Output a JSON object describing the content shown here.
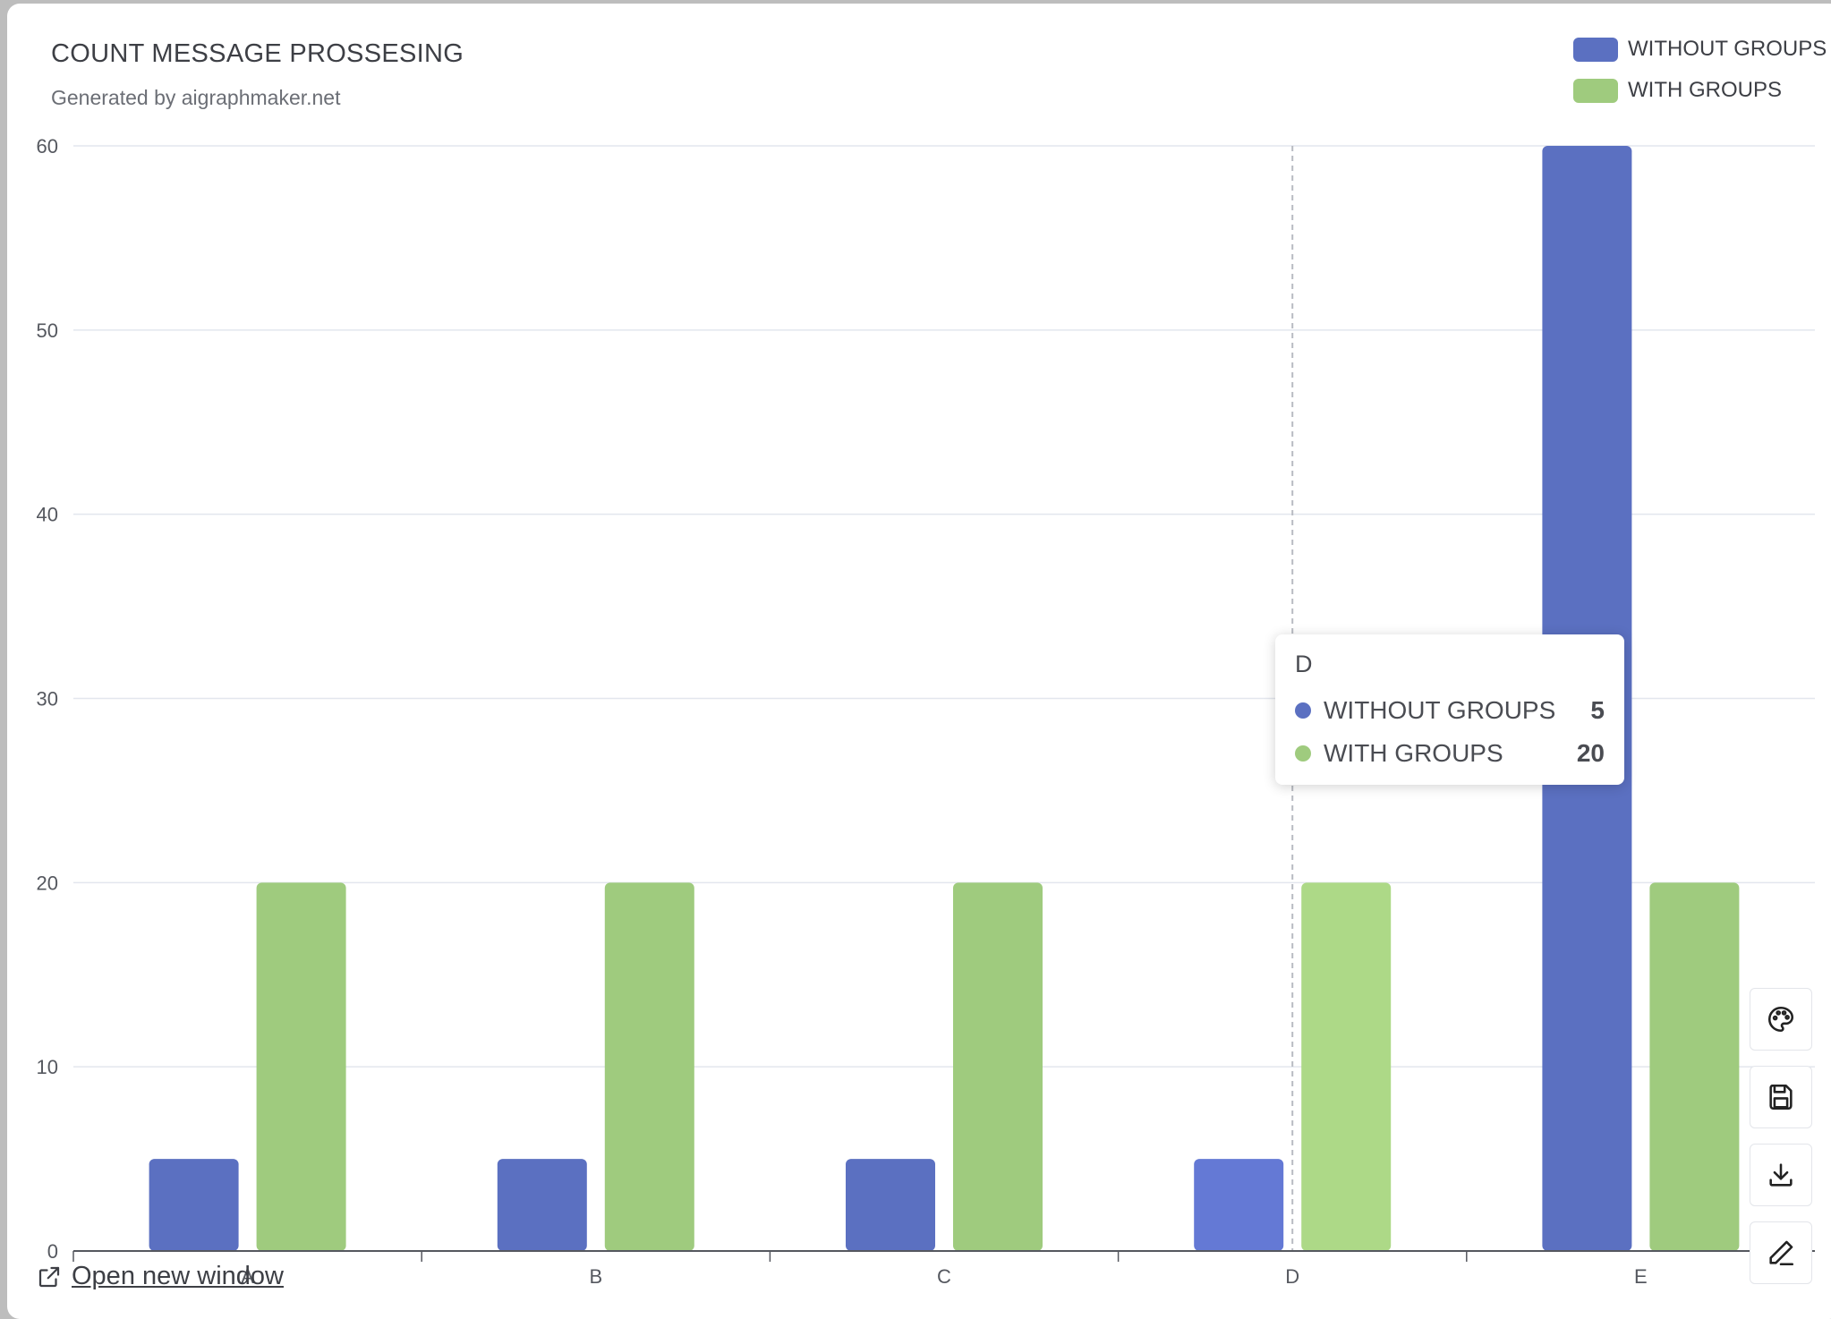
{
  "chart_data": {
    "type": "bar",
    "title": "COUNT MESSAGE PROSSESING",
    "subtitle": "Generated by aigraphmaker.net",
    "categories": [
      "A",
      "B",
      "C",
      "D",
      "E"
    ],
    "series": [
      {
        "name": "WITHOUT GROUPS",
        "values": [
          5,
          5,
          5,
          5,
          60
        ],
        "color": "#5b70c1"
      },
      {
        "name": "WITH GROUPS",
        "values": [
          20,
          20,
          20,
          20,
          20
        ],
        "color": "#9fcb7e"
      }
    ],
    "ylim": [
      0,
      60
    ],
    "yticks": [
      "0",
      "10",
      "20",
      "30",
      "40",
      "50",
      "60"
    ],
    "grid": true,
    "legend_position": "top-right",
    "highlighted_category": "D",
    "highlight_colors": [
      "#6278d4",
      "#add f88"
    ]
  },
  "tooltip": {
    "title": "D",
    "rows": [
      {
        "name": "WITHOUT GROUPS",
        "value": "5",
        "color": "#5b70c1"
      },
      {
        "name": "WITH GROUPS",
        "value": "20",
        "color": "#9fcb7e"
      }
    ]
  },
  "toolbar": {
    "icons": [
      "palette-icon",
      "save-icon",
      "download-icon",
      "pencil-icon"
    ]
  },
  "footer": {
    "open_link": "Open new window"
  }
}
